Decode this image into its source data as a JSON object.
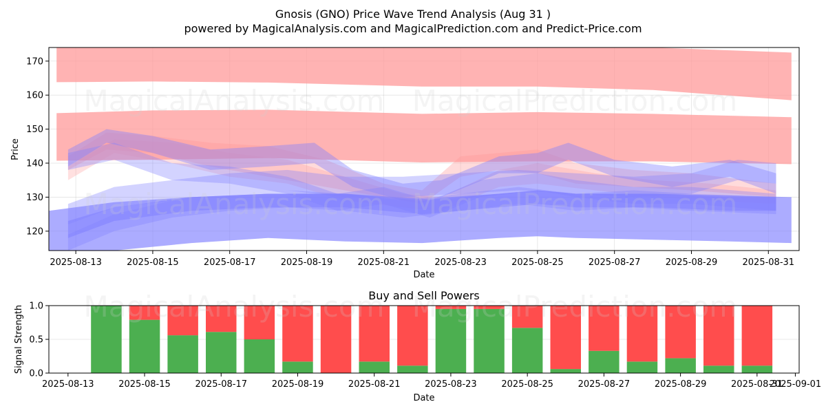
{
  "title": "Gnosis (GNO) Price Wave Trend Analysis (Aug 31 )",
  "subtitle": "powered by MagicalAnalysis.com and MagicalPrediction.com and Predict-Price.com",
  "watermarks": [
    "MagicalAnalysis.com",
    "MagicalPrediction.com"
  ],
  "colors": {
    "sell": "#ff4d4d",
    "buy": "#4caf50",
    "wave_red": "#ff9999",
    "wave_blue": "#8080ff"
  },
  "chart_data": [
    {
      "type": "area",
      "title": "",
      "xlabel": "Date",
      "ylabel": "Price",
      "ylim": [
        114.3,
        174
      ],
      "xlim_days": [
        12.3,
        31.8
      ],
      "x_ticks": [
        {
          "day": 13,
          "label": "2025-08-13"
        },
        {
          "day": 15,
          "label": "2025-08-15"
        },
        {
          "day": 17,
          "label": "2025-08-17"
        },
        {
          "day": 19,
          "label": "2025-08-19"
        },
        {
          "day": 21,
          "label": "2025-08-21"
        },
        {
          "day": 23,
          "label": "2025-08-23"
        },
        {
          "day": 25,
          "label": "2025-08-25"
        },
        {
          "day": 27,
          "label": "2025-08-27"
        },
        {
          "day": 29,
          "label": "2025-08-29"
        },
        {
          "day": 31,
          "label": "2025-08-31"
        }
      ],
      "y_ticks": [
        120,
        130,
        140,
        150,
        160,
        170
      ],
      "grid": true,
      "bands": [
        {
          "name": "red-upper-band",
          "color": "red",
          "opacity": 0.75,
          "x": [
            12.5,
            15,
            18,
            22,
            25,
            28,
            31.6
          ],
          "lower": [
            163.8,
            164,
            163.7,
            162.5,
            162.5,
            161.5,
            158.5
          ],
          "upper": [
            174,
            174,
            174,
            174,
            174,
            174,
            172.5
          ]
        },
        {
          "name": "red-lower-band",
          "color": "red",
          "opacity": 0.75,
          "x": [
            12.5,
            15,
            18,
            22,
            25,
            28,
            31.6
          ],
          "lower": [
            140.7,
            141,
            141.5,
            140.2,
            140.5,
            140.5,
            139.7
          ],
          "upper": [
            154.7,
            155.5,
            155.7,
            154.5,
            155,
            154.5,
            153.5
          ]
        },
        {
          "name": "wave-red-1",
          "color": "red",
          "opacity": 0.35,
          "x": [
            12.8,
            13.8,
            15,
            16.5,
            18,
            19.5,
            21,
            22,
            23,
            24,
            25,
            26,
            27.5,
            29,
            31.2
          ],
          "lower": [
            138,
            144,
            143,
            139,
            136,
            133,
            130,
            128,
            136,
            138,
            137,
            134,
            133,
            132,
            130
          ],
          "upper": [
            142,
            149,
            148,
            146,
            145,
            141,
            134,
            132,
            142,
            143,
            144,
            140,
            138,
            137,
            134
          ]
        },
        {
          "name": "wave-red-2",
          "color": "red",
          "opacity": 0.3,
          "x": [
            12.8,
            14,
            15.5,
            17,
            18.5,
            20,
            21.5,
            22.5,
            24,
            25,
            26.5,
            28,
            29.5,
            31.2
          ],
          "lower": [
            135,
            143,
            140,
            136,
            134,
            129,
            127,
            126,
            133,
            134,
            132,
            130,
            129,
            128
          ],
          "upper": [
            139,
            147,
            146,
            143,
            141,
            136,
            131,
            130,
            138,
            140,
            137,
            135,
            134,
            132
          ]
        },
        {
          "name": "wave-blue-a",
          "color": "blue",
          "opacity": 0.4,
          "x": [
            12.8,
            13.8,
            15,
            16.5,
            18,
            19.2,
            20.2,
            21.5,
            22.5,
            24,
            25,
            25.8,
            27,
            28.5,
            30,
            31.2
          ],
          "lower": [
            139,
            146,
            143,
            138,
            139,
            140,
            133,
            129,
            130,
            137,
            137,
            141,
            136,
            133,
            136,
            131
          ],
          "upper": [
            144,
            150,
            148,
            144,
            145,
            146,
            138,
            134,
            135,
            142,
            143,
            146,
            141,
            139,
            141,
            137
          ]
        },
        {
          "name": "wave-blue-b",
          "color": "blue",
          "opacity": 0.35,
          "x": [
            12.8,
            14,
            15.5,
            17,
            18.5,
            19.8,
            21,
            22.2,
            23.5,
            25,
            26,
            27.5,
            29,
            31.2
          ],
          "lower": [
            138,
            141,
            135,
            134,
            131,
            126,
            128,
            124,
            130,
            132,
            130,
            128,
            128,
            126
          ],
          "upper": [
            143,
            146,
            140,
            139,
            136,
            131,
            133,
            129,
            135,
            137,
            135,
            133,
            133,
            131
          ]
        },
        {
          "name": "wave-blue-c",
          "color": "blue",
          "opacity": 0.35,
          "x": [
            12.8,
            14,
            15.5,
            17,
            18.5,
            20,
            21.5,
            23,
            24.5,
            26,
            27.5,
            29,
            30.2,
            31.2
          ],
          "lower": [
            122,
            127,
            129,
            131,
            132,
            130,
            130,
            131,
            132,
            131,
            130,
            131,
            135,
            134
          ],
          "upper": [
            128,
            133,
            135,
            137,
            138,
            136,
            136,
            137,
            138,
            137,
            136,
            137,
            141,
            140
          ]
        },
        {
          "name": "wave-blue-d",
          "color": "blue",
          "opacity": 0.35,
          "x": [
            12.8,
            14,
            15.5,
            17,
            18.5,
            20,
            21.5,
            23,
            24.5,
            26,
            27.5,
            29,
            31.2
          ],
          "lower": [
            114,
            120,
            124,
            126,
            127,
            126,
            124,
            126,
            128,
            126,
            127,
            126,
            125
          ],
          "upper": [
            119,
            125,
            129,
            131,
            132,
            131,
            129,
            131,
            133,
            131,
            132,
            131,
            130
          ]
        },
        {
          "name": "blue-lower-band",
          "color": "blue",
          "opacity": 0.65,
          "x": [
            12.3,
            14,
            16,
            18,
            20,
            22,
            24,
            25,
            26,
            28,
            30,
            31.6
          ],
          "lower": [
            112.5,
            114,
            116.5,
            118,
            117,
            116.5,
            118,
            118.5,
            118,
            117.5,
            117,
            116.5
          ],
          "upper": [
            126,
            128.5,
            130,
            131,
            131,
            129.5,
            131,
            132,
            131,
            131,
            130.5,
            130
          ]
        },
        {
          "name": "blue-mid-band",
          "color": "blue",
          "opacity": 0.55,
          "x": [
            12.8,
            14,
            16,
            18,
            20,
            22,
            24,
            25,
            26,
            28,
            30,
            31.2
          ],
          "lower": [
            118,
            123,
            126,
            127,
            127,
            125,
            127,
            128,
            127,
            127,
            126,
            126
          ],
          "upper": [
            123,
            127,
            130,
            131,
            131,
            129,
            131,
            132,
            131,
            131,
            130,
            130
          ]
        }
      ]
    },
    {
      "type": "bar",
      "title": "Buy and Sell Powers",
      "xlabel": "Date",
      "ylabel": "Signal Strength",
      "ylim": [
        0,
        1
      ],
      "y_ticks": [
        "0.0",
        "0.5",
        "1.0"
      ],
      "x_ticks": [
        {
          "day": 13,
          "label": "2025-08-13"
        },
        {
          "day": 15,
          "label": "2025-08-15"
        },
        {
          "day": 17,
          "label": "2025-08-17"
        },
        {
          "day": 19,
          "label": "2025-08-19"
        },
        {
          "day": 21,
          "label": "2025-08-21"
        },
        {
          "day": 23,
          "label": "2025-08-23"
        },
        {
          "day": 25,
          "label": "2025-08-25"
        },
        {
          "day": 27,
          "label": "2025-08-27"
        },
        {
          "day": 29,
          "label": "2025-08-29"
        },
        {
          "day": 31,
          "label": "2025-08-31"
        },
        {
          "day": 32,
          "label": "2025-09-01"
        }
      ],
      "days": [
        14,
        15,
        16,
        17,
        18,
        19,
        20,
        21,
        22,
        23,
        24,
        25,
        26,
        27,
        28,
        29,
        30,
        31
      ],
      "series": [
        {
          "name": "Buy",
          "values": [
            1.0,
            0.79,
            0.56,
            0.61,
            0.5,
            0.17,
            0.0,
            0.17,
            0.11,
            0.95,
            0.95,
            0.67,
            0.06,
            0.33,
            0.17,
            0.22,
            0.11,
            0.11
          ]
        },
        {
          "name": "Sell",
          "values": [
            0.0,
            0.21,
            0.44,
            0.39,
            0.5,
            0.83,
            1.0,
            0.83,
            0.89,
            0.05,
            0.05,
            0.33,
            0.94,
            0.67,
            0.83,
            0.78,
            0.89,
            0.89
          ]
        }
      ]
    }
  ]
}
